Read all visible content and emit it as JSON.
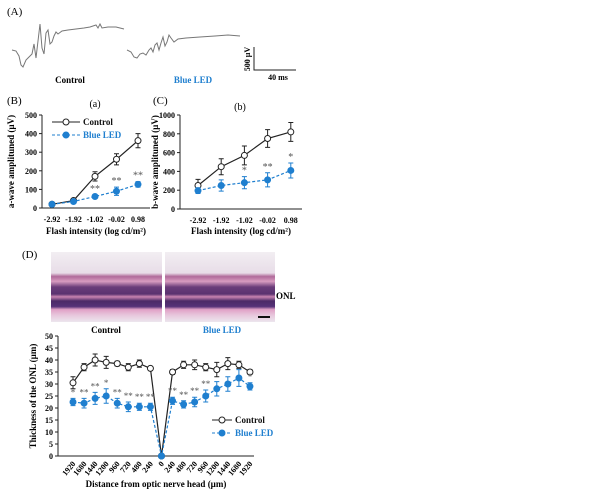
{
  "colors": {
    "control": "#222222",
    "blue_led": "#1f7fcf",
    "stars": "#555555"
  },
  "panel_a": {
    "label": "(A)",
    "control_label": "Control",
    "blue_label": "Blue LED",
    "scale_v": "500 µV",
    "scale_h": "40 ms"
  },
  "panel_d": {
    "label": "(D)",
    "layer_label": "ONL",
    "control_label": "Control",
    "blue_label": "Blue LED"
  },
  "chart_data": [
    {
      "panel": "(B)",
      "title": "(a)",
      "type": "line",
      "categories": [
        "-2.92",
        "-1.92",
        "-1.02",
        "-0.02",
        "0.98"
      ],
      "xlabel": "Flash intensity (log cd/m²)",
      "ylabel": "a-wave amplituned (µV)",
      "ylim": [
        0,
        500
      ],
      "yticks": [
        0,
        100,
        200,
        300,
        400,
        500
      ],
      "legend": "top-left",
      "series": [
        {
          "name": "Control",
          "values": [
            20,
            40,
            170,
            262,
            362
          ],
          "errors": [
            5,
            8,
            25,
            30,
            38
          ]
        },
        {
          "name": "Blue LED",
          "values": [
            20,
            35,
            62,
            90,
            127
          ],
          "errors": [
            3,
            5,
            8,
            22,
            15
          ]
        }
      ],
      "significance": [
        "",
        "",
        "**",
        "**",
        "**"
      ]
    },
    {
      "panel": "(C)",
      "title": "(b)",
      "type": "line",
      "categories": [
        "-2.92",
        "-1.92",
        "-1.02",
        "-0.02",
        "0.98"
      ],
      "xlabel": "Flash intensity (log cd/m²)",
      "ylabel": "b-wave amplituned (µV)",
      "ylim": [
        0,
        1000
      ],
      "yticks": [
        0,
        200,
        400,
        600,
        800,
        1000
      ],
      "series": [
        {
          "name": "Control",
          "values": [
            250,
            450,
            570,
            750,
            820
          ],
          "errors": [
            65,
            85,
            100,
            95,
            100
          ]
        },
        {
          "name": "Blue LED",
          "values": [
            195,
            250,
            280,
            310,
            410
          ],
          "errors": [
            30,
            60,
            65,
            75,
            80
          ]
        }
      ],
      "significance": [
        "",
        "",
        "*",
        "**",
        "*"
      ]
    },
    {
      "panel": "(D)",
      "type": "line",
      "categories": [
        "1920",
        "1680",
        "1440",
        "1200",
        "960",
        "720",
        "480",
        "240",
        "0",
        "240",
        "480",
        "720",
        "960",
        "1200",
        "1440",
        "1680",
        "1920"
      ],
      "xlabel": "Distance from optic nerve head (µm)",
      "ylabel": "Thickness of the ONL (µm)",
      "ylim": [
        0,
        50
      ],
      "yticks": [
        0,
        5,
        10,
        15,
        20,
        25,
        30,
        35,
        40,
        45,
        50
      ],
      "legend": "right",
      "series": [
        {
          "name": "Control",
          "values": [
            30.5,
            37,
            40,
            39,
            38.5,
            37,
            38.5,
            36.5,
            0,
            35,
            38,
            38,
            37,
            36,
            38.5,
            38,
            35
          ],
          "errors": [
            2.5,
            1.5,
            2.5,
            2.5,
            1,
            1.5,
            1.5,
            0.5,
            0,
            1,
            1.5,
            2,
            1.5,
            3,
            2.5,
            1.5,
            1
          ]
        },
        {
          "name": "Blue LED",
          "values": [
            22.5,
            22,
            24,
            25,
            22,
            20.5,
            20.5,
            20.5,
            0,
            23,
            21.5,
            22.5,
            25,
            28,
            30,
            32.5,
            29
          ],
          "errors": [
            1.5,
            2,
            2.5,
            3,
            2,
            2,
            1.5,
            1.5,
            0,
            1.5,
            1.5,
            2,
            2.5,
            3,
            3,
            3.5,
            1.5
          ]
        }
      ],
      "significance": [
        "*",
        "**",
        "**",
        "*",
        "**",
        "**",
        "**",
        "**",
        "",
        "**",
        "**",
        "**",
        "**",
        "",
        "",
        "",
        "*"
      ]
    }
  ]
}
